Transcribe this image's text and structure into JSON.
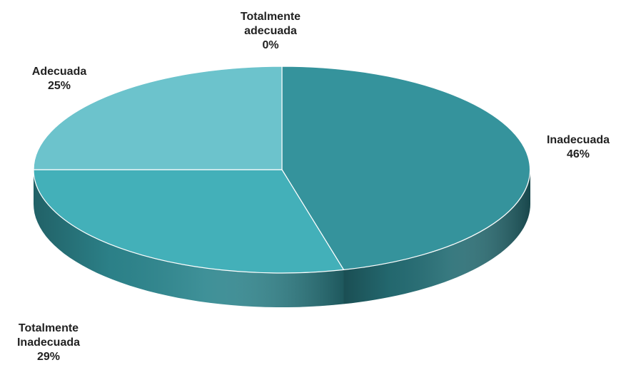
{
  "chart_data": {
    "type": "pie",
    "style": "3d",
    "categories": [
      "Inadecuada",
      "Totalmente Inadecuada",
      "Adecuada",
      "Totalmente adecuada"
    ],
    "values": [
      46,
      29,
      25,
      0
    ],
    "unit": "%",
    "labels": [
      {
        "lines": [
          "Inadecuada",
          "46%"
        ]
      },
      {
        "lines": [
          "Totalmente",
          "Inadecuada",
          "29%"
        ]
      },
      {
        "lines": [
          "Adecuada",
          "25%"
        ]
      },
      {
        "lines": [
          "Totalmente",
          "adecuada",
          "0%"
        ]
      }
    ],
    "colors": [
      "#35939c",
      "#43b0b9",
      "#6cc3cc",
      "#7fd0d6"
    ],
    "side_colors": [
      "#256d74",
      "#2e878f",
      "#4f9ea6",
      "#5aa9b0"
    ],
    "legend": "none",
    "grid": false
  }
}
